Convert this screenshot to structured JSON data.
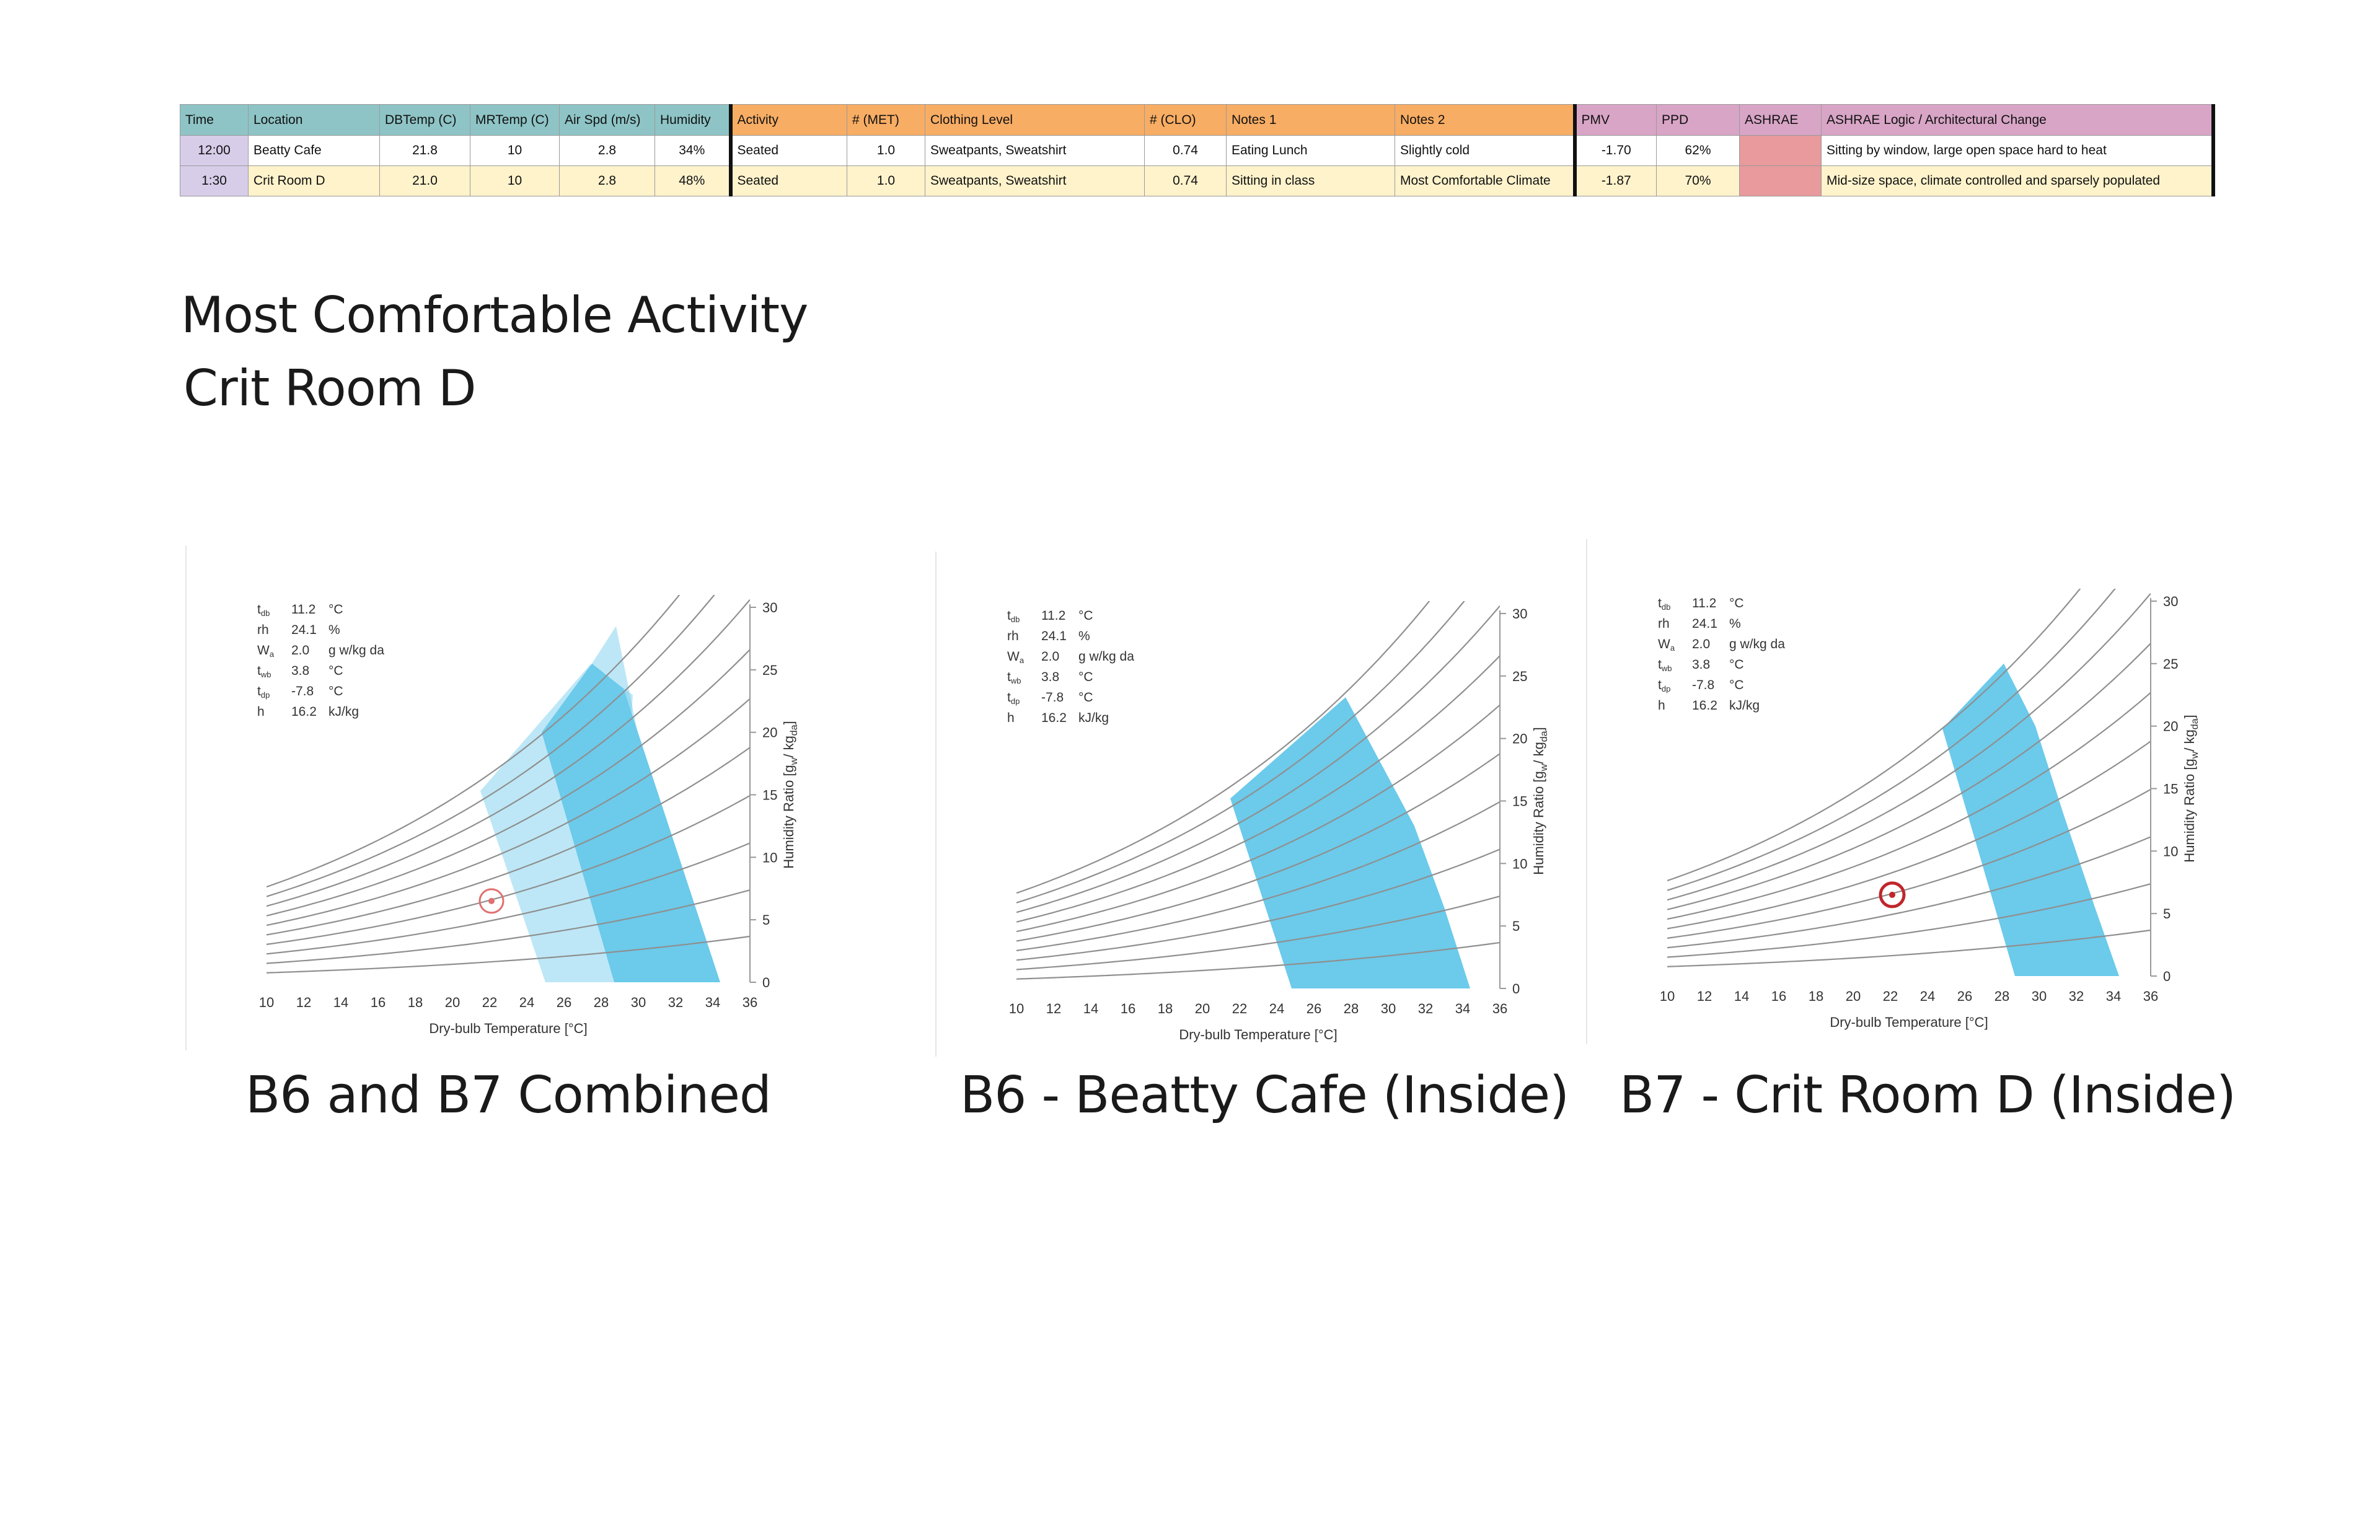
{
  "table": {
    "headers": [
      "Time",
      "Location",
      "DBTemp (C)",
      "MRTemp (C)",
      "Air Spd (m/s)",
      "Humidity",
      "Activity",
      "# (MET)",
      "Clothing Level",
      "# (CLO)",
      "Notes 1",
      "Notes 2",
      "PMV",
      "PPD",
      "ASHRAE",
      "ASHRAE Logic / Architectural Change"
    ],
    "rows": [
      [
        "12:00",
        "Beatty Cafe",
        "21.8",
        "10",
        "2.8",
        "34%",
        "Seated",
        "1.0",
        "Sweatpants, Sweatshirt",
        "0.74",
        "Eating Lunch",
        "Slightly cold",
        "-1.70",
        "62%",
        "",
        "Sitting by window, large open space hard to heat"
      ],
      [
        "1:30",
        "Crit Room D",
        "21.0",
        "10",
        "2.8",
        "48%",
        "Seated",
        "1.0",
        "Sweatpants, Sweatshirt",
        "0.74",
        "Sitting in class",
        "Most Comfortable Climate",
        "-1.87",
        "70%",
        "",
        "Mid-size space, climate controlled and sparsely populated"
      ]
    ],
    "colors": {
      "env": "#8ec4c6",
      "activity": "#f8ad64",
      "ashrae": "#d8a5c6",
      "time": "#d7cde9",
      "row2": "#fff3cc",
      "ashrae_flag": "#e89a9c"
    }
  },
  "title": {
    "line1": "Most Comfortable Activity",
    "line2": "Crit Room D"
  },
  "chart_data": [
    {
      "type": "scatter",
      "caption": "B6 and B7 Combined",
      "xlabel": "Dry-bulb Temperature [°C]",
      "ylabel_parts": [
        "Humidity Ratio [g",
        "w",
        "/ kg",
        "da",
        "]"
      ],
      "xlim": [
        10,
        36
      ],
      "ylim": [
        0,
        30
      ],
      "x_ticks": [
        "10",
        "12",
        "14",
        "16",
        "18",
        "20",
        "22",
        "24",
        "26",
        "28",
        "30",
        "32",
        "34",
        "36"
      ],
      "y_ticks": [
        "0",
        "5",
        "10",
        "15",
        "20",
        "25",
        "30"
      ],
      "readout": [
        {
          "sym": "t",
          "sub": "db",
          "value": "11.2",
          "unit": "°C"
        },
        {
          "sym": "rh",
          "sub": "",
          "value": "24.1",
          "unit": "%"
        },
        {
          "sym": "W",
          "sub": "a",
          "value": "2.0",
          "unit": "g w/kg da"
        },
        {
          "sym": "t",
          "sub": "wb",
          "value": "3.8",
          "unit": "°C"
        },
        {
          "sym": "t",
          "sub": "dp",
          "value": "-7.8",
          "unit": "°C"
        },
        {
          "sym": "h",
          "sub": "",
          "value": "16.2",
          "unit": "kJ/kg"
        }
      ],
      "point": {
        "x": 22.1,
        "y": 6.5
      },
      "zone_color": "#6ccaea",
      "zones": [
        "light",
        "dark"
      ]
    },
    {
      "type": "area",
      "caption": "B6 - Beatty Cafe (Inside)",
      "xlabel": "Dry-bulb Temperature [°C]",
      "ylabel_parts": [
        "Humidity Ratio [g",
        "w",
        "/ kg",
        "da",
        "]"
      ],
      "xlim": [
        10,
        36
      ],
      "ylim": [
        0,
        30
      ],
      "x_ticks": [
        "10",
        "12",
        "14",
        "16",
        "18",
        "20",
        "22",
        "24",
        "26",
        "28",
        "30",
        "32",
        "34",
        "36"
      ],
      "y_ticks": [
        "0",
        "5",
        "10",
        "15",
        "20",
        "25",
        "30"
      ],
      "readout": [
        {
          "sym": "t",
          "sub": "db",
          "value": "11.2",
          "unit": "°C"
        },
        {
          "sym": "rh",
          "sub": "",
          "value": "24.1",
          "unit": "%"
        },
        {
          "sym": "W",
          "sub": "a",
          "value": "2.0",
          "unit": "g w/kg da"
        },
        {
          "sym": "t",
          "sub": "wb",
          "value": "3.8",
          "unit": "°C"
        },
        {
          "sym": "t",
          "sub": "dp",
          "value": "-7.8",
          "unit": "°C"
        },
        {
          "sym": "h",
          "sub": "",
          "value": "16.2",
          "unit": "kJ/kg"
        }
      ],
      "point": null,
      "zone_color": "#6ccaea",
      "zones": [
        "wide"
      ]
    },
    {
      "type": "scatter",
      "caption": "B7 - Crit Room D (Inside)",
      "xlabel": "Dry-bulb Temperature [°C]",
      "ylabel_parts": [
        "Humidity Ratio [g",
        "w",
        "/ kg",
        "da",
        "]"
      ],
      "xlim": [
        10,
        36
      ],
      "ylim": [
        0,
        30
      ],
      "x_ticks": [
        "10",
        "12",
        "14",
        "16",
        "18",
        "20",
        "22",
        "24",
        "26",
        "28",
        "30",
        "32",
        "34",
        "36"
      ],
      "y_ticks": [
        "0",
        "5",
        "10",
        "15",
        "20",
        "25",
        "30"
      ],
      "readout": [
        {
          "sym": "t",
          "sub": "db",
          "value": "11.2",
          "unit": "°C"
        },
        {
          "sym": "rh",
          "sub": "",
          "value": "24.1",
          "unit": "%"
        },
        {
          "sym": "W",
          "sub": "a",
          "value": "2.0",
          "unit": "g w/kg da"
        },
        {
          "sym": "t",
          "sub": "wb",
          "value": "3.8",
          "unit": "°C"
        },
        {
          "sym": "t",
          "sub": "dp",
          "value": "-7.8",
          "unit": "°C"
        },
        {
          "sym": "h",
          "sub": "",
          "value": "16.2",
          "unit": "kJ/kg"
        }
      ],
      "point": {
        "x": 22.1,
        "y": 6.5
      },
      "zone_color": "#6ccaea",
      "zones": [
        "dark"
      ]
    }
  ]
}
